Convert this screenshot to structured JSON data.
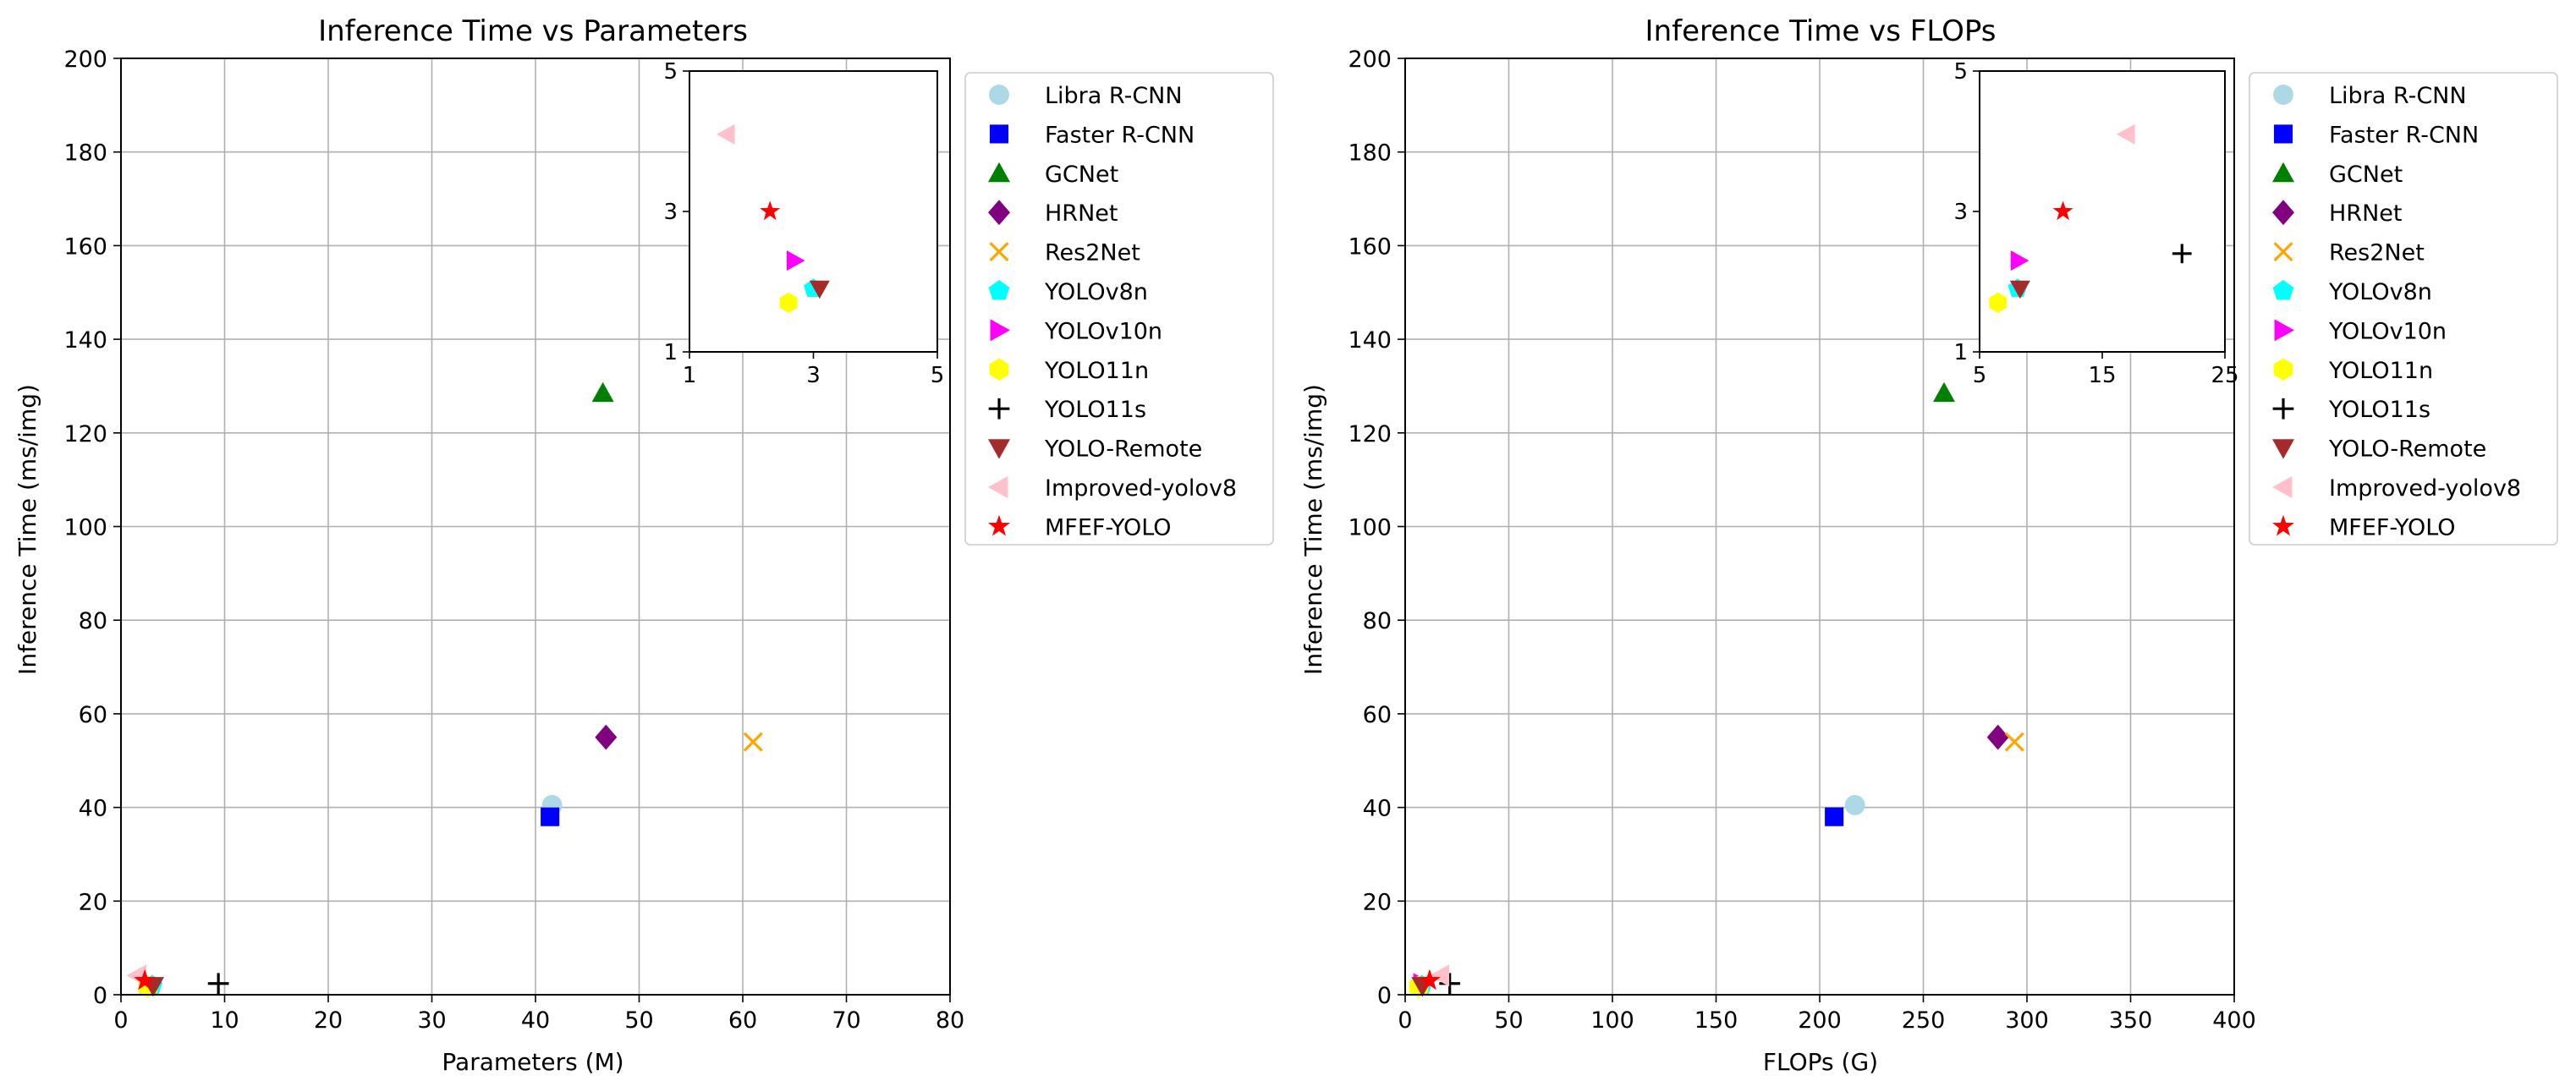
{
  "colors": {
    "Libra R-CNN": "#add8e6",
    "Faster R-CNN": "#0000ff",
    "GCNet": "#008000",
    "HRNet": "#800080",
    "Res2Net": "#ffa500",
    "YOLOv8n": "#00ffff",
    "YOLOv10n": "#ff00ff",
    "YOLO11n": "#ffff00",
    "YOLO11s": "#000000",
    "YOLO-Remote": "#a52a2a",
    "Improved-yolov8": "#ffc0cb",
    "MFEF-YOLO": "#ff0000",
    "grid": "#b0b0b0"
  },
  "markers": {
    "Libra R-CNN": "circle",
    "Faster R-CNN": "square",
    "GCNet": "triangle-up",
    "HRNet": "diamond",
    "Res2Net": "x",
    "YOLOv8n": "pentagon",
    "YOLOv10n": "triangle-right",
    "YOLO11n": "hexagon",
    "YOLO11s": "plus",
    "YOLO-Remote": "triangle-down",
    "Improved-yolov8": "triangle-left",
    "MFEF-YOLO": "star"
  },
  "chart_data": [
    {
      "type": "scatter",
      "title": "Inference Time vs Parameters",
      "xlabel": "Parameters (M)",
      "ylabel": "Inference Time (ms/img)",
      "xlim": [
        0,
        80
      ],
      "ylim": [
        0,
        200
      ],
      "xticks": [
        0,
        10,
        20,
        30,
        40,
        50,
        60,
        70,
        80
      ],
      "yticks": [
        0,
        20,
        40,
        60,
        80,
        100,
        120,
        140,
        160,
        180,
        200
      ],
      "grid": true,
      "legend_placement": "outside-right",
      "series": [
        {
          "name": "Libra R-CNN",
          "x": 41.6,
          "y": 40.5
        },
        {
          "name": "Faster R-CNN",
          "x": 41.4,
          "y": 38.0
        },
        {
          "name": "GCNet",
          "x": 46.5,
          "y": 128.5
        },
        {
          "name": "HRNet",
          "x": 46.8,
          "y": 55.0
        },
        {
          "name": "Res2Net",
          "x": 61.0,
          "y": 54.0
        },
        {
          "name": "YOLOv8n",
          "x": 3.0,
          "y": 1.9
        },
        {
          "name": "YOLOv10n",
          "x": 2.7,
          "y": 2.3
        },
        {
          "name": "YOLO11n",
          "x": 2.6,
          "y": 1.7
        },
        {
          "name": "YOLO11s",
          "x": 9.4,
          "y": 2.4
        },
        {
          "name": "YOLO-Remote",
          "x": 3.1,
          "y": 1.9
        },
        {
          "name": "Improved-yolov8",
          "x": 1.6,
          "y": 4.1
        },
        {
          "name": "MFEF-YOLO",
          "x": 2.3,
          "y": 3.0
        }
      ],
      "inset": {
        "xlim": [
          1,
          5
        ],
        "ylim": [
          1,
          5
        ],
        "xticks": [
          1,
          3,
          5
        ],
        "yticks": [
          1,
          3,
          5
        ],
        "placement": "top-right"
      }
    },
    {
      "type": "scatter",
      "title": "Inference Time vs FLOPs",
      "xlabel": "FLOPs (G)",
      "ylabel": "Inference Time (ms/img)",
      "xlim": [
        0,
        400
      ],
      "ylim": [
        0,
        200
      ],
      "xticks": [
        0,
        50,
        100,
        150,
        200,
        250,
        300,
        350,
        400
      ],
      "yticks": [
        0,
        20,
        40,
        60,
        80,
        100,
        120,
        140,
        160,
        180,
        200
      ],
      "grid": true,
      "legend_placement": "outside-right",
      "series": [
        {
          "name": "Libra R-CNN",
          "x": 217,
          "y": 40.5
        },
        {
          "name": "Faster R-CNN",
          "x": 207,
          "y": 38.0
        },
        {
          "name": "GCNet",
          "x": 260,
          "y": 128.5
        },
        {
          "name": "HRNet",
          "x": 286,
          "y": 55.0
        },
        {
          "name": "Res2Net",
          "x": 294,
          "y": 54.0
        },
        {
          "name": "YOLOv8n",
          "x": 8.1,
          "y": 1.9
        },
        {
          "name": "YOLOv10n",
          "x": 8.2,
          "y": 2.3
        },
        {
          "name": "YOLO11n",
          "x": 6.5,
          "y": 1.7
        },
        {
          "name": "YOLO11s",
          "x": 21.5,
          "y": 2.4
        },
        {
          "name": "YOLO-Remote",
          "x": 8.3,
          "y": 1.9
        },
        {
          "name": "Improved-yolov8",
          "x": 17.0,
          "y": 4.1
        },
        {
          "name": "MFEF-YOLO",
          "x": 11.8,
          "y": 3.0
        }
      ],
      "inset": {
        "xlim": [
          5,
          25
        ],
        "ylim": [
          1,
          5
        ],
        "xticks": [
          5,
          15,
          25
        ],
        "yticks": [
          1,
          3,
          5
        ],
        "placement": "top-right"
      }
    }
  ]
}
